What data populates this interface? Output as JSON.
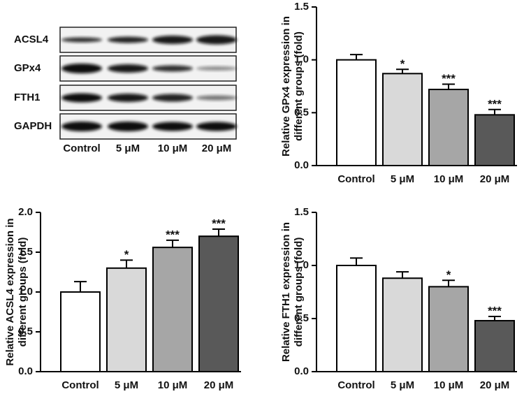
{
  "blot": {
    "rows": [
      "ACSL4",
      "GPx4",
      "FTH1",
      "GAPDH"
    ],
    "columns": [
      "Control",
      "5 μM",
      "10 μM",
      "20 μM"
    ]
  },
  "chart_data": [
    {
      "type": "bar",
      "ylabel": [
        "Relative GPx4 expression in",
        "different groups (fold)"
      ],
      "categories": [
        "Control",
        "5 μM",
        "10 μM",
        "20 μM"
      ],
      "values": [
        1.0,
        0.87,
        0.72,
        0.48
      ],
      "errors": [
        0.05,
        0.04,
        0.05,
        0.05
      ],
      "significance": [
        null,
        "*",
        "***",
        "***"
      ],
      "colors": [
        "#ffffff",
        "#d9d9d9",
        "#a6a6a6",
        "#595959"
      ],
      "ylim": [
        0,
        1.5
      ],
      "yticks": [
        {
          "value": 0,
          "label": "0.0"
        },
        {
          "value": 0.5,
          "label": "0.5"
        },
        {
          "value": 1,
          "label": "1.0"
        },
        {
          "value": 1.5,
          "label": "1.5"
        }
      ]
    },
    {
      "type": "bar",
      "ylabel": [
        "Relative ACSL4 expression in",
        "different groups (fold)"
      ],
      "categories": [
        "Control",
        "5 μM",
        "10 μM",
        "20 μM"
      ],
      "values": [
        1.0,
        1.3,
        1.56,
        1.7
      ],
      "errors": [
        0.13,
        0.1,
        0.09,
        0.09
      ],
      "significance": [
        null,
        "*",
        "***",
        "***"
      ],
      "colors": [
        "#ffffff",
        "#d9d9d9",
        "#a6a6a6",
        "#595959"
      ],
      "ylim": [
        0,
        2
      ],
      "yticks": [
        {
          "value": 0,
          "label": "0.0"
        },
        {
          "value": 0.5,
          "label": "0.5"
        },
        {
          "value": 1,
          "label": "1.0"
        },
        {
          "value": 1.5,
          "label": "1.5"
        },
        {
          "value": 2,
          "label": "2.0"
        }
      ]
    },
    {
      "type": "bar",
      "ylabel": [
        "Relative FTH1 expression in",
        "different groups (fold)"
      ],
      "categories": [
        "Control",
        "5 μM",
        "10 μM",
        "20 μM"
      ],
      "values": [
        1.0,
        0.88,
        0.8,
        0.48
      ],
      "errors": [
        0.07,
        0.06,
        0.06,
        0.04
      ],
      "significance": [
        null,
        null,
        "*",
        "***"
      ],
      "colors": [
        "#ffffff",
        "#d9d9d9",
        "#a6a6a6",
        "#595959"
      ],
      "ylim": [
        0,
        1.5
      ],
      "yticks": [
        {
          "value": 0,
          "label": "0.0"
        },
        {
          "value": 0.5,
          "label": "0.5"
        },
        {
          "value": 1,
          "label": "1.0"
        },
        {
          "value": 1.5,
          "label": "1.5"
        }
      ]
    }
  ]
}
